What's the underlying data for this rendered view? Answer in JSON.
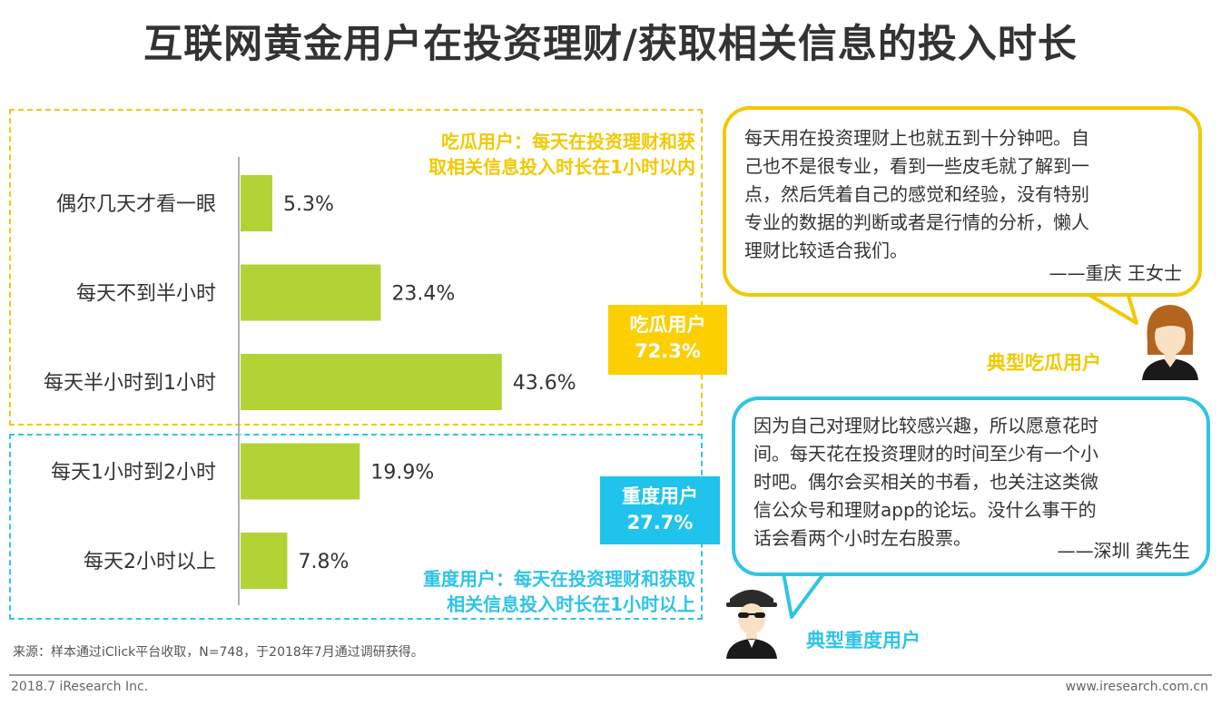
{
  "title": "互联网黄金用户在投资理财/获取相关信息的投入时长",
  "chart_data": {
    "type": "bar",
    "orientation": "horizontal",
    "categories": [
      "偶尔几天才看一眼",
      "每天不到半小时",
      "每天半小时到1小时",
      "每天1小时到2小时",
      "每天2小时以上"
    ],
    "values": [
      5.3,
      23.4,
      43.6,
      19.9,
      7.8
    ],
    "value_labels": [
      "5.3%",
      "23.4%",
      "43.6%",
      "19.9%",
      "7.8%"
    ],
    "unit": "%",
    "xlim": [
      0,
      100
    ],
    "bar_color": "#b3d236",
    "grid": false
  },
  "groups": {
    "casual": {
      "description_line1": "吃瓜用户：每天在投资理财和获",
      "description_line2": "取相关信息投入时长在1小时以内",
      "tag_name": "吃瓜用户",
      "tag_value": "72.3%",
      "color": "#fccf00"
    },
    "heavy": {
      "description_line1": "重度用户：每天在投资理财和获取",
      "description_line2": "相关信息投入时长在1小时以上",
      "tag_name": "重度用户",
      "tag_value": "27.7%",
      "color": "#1fc3ec"
    }
  },
  "quotes": {
    "casual": {
      "lines": [
        "每天用在投资理财上也就五到十分钟吧。自",
        "己也不是很专业，看到一些皮毛就了解到一",
        "点，然后凭着自己的感觉和经验，没有特别",
        "专业的数据的判断或者是行情的分析，懒人",
        "理财比较适合我们。"
      ],
      "signature": "——重庆 王女士",
      "persona": "典型吃瓜用户"
    },
    "heavy": {
      "lines": [
        "因为自己对理财比较感兴趣，所以愿意花时",
        "间。每天花在投资理财的时间至少有一个小",
        "时吧。偶尔会买相关的书看，也关注这类微",
        "信公众号和理财app的论坛。没什么事干的",
        "话会看两个小时左右股票。"
      ],
      "signature": "——深圳 龚先生",
      "persona": "典型重度用户"
    }
  },
  "source": "来源：样本通过iClick平台收取，N=748，于2018年7月通过调研获得。",
  "footer": {
    "left": "2018.7 iResearch Inc.",
    "right": "www.iresearch.com.cn"
  }
}
